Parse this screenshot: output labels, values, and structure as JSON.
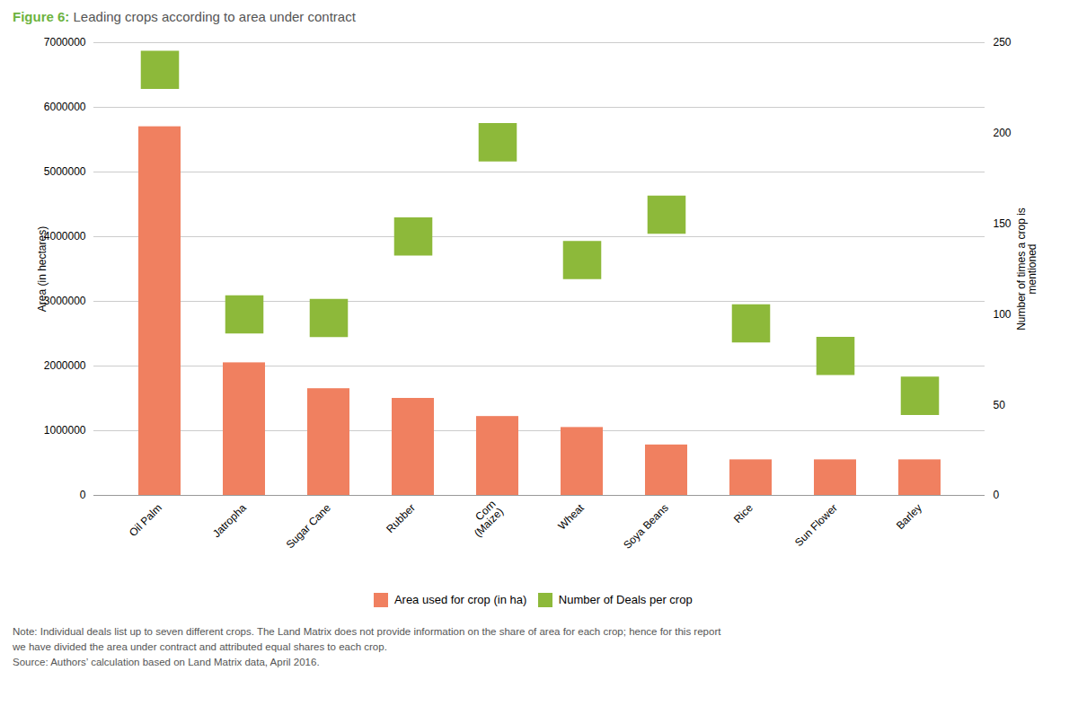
{
  "chart_data": {
    "type": "bar",
    "title": "Figure 6: Leading crops according to area under contract",
    "categories": [
      "Oil Palm",
      "Jatropha",
      "Sugar Cane",
      "Rubber",
      "Corn\n(Maize)",
      "Wheat",
      "Soya Beans",
      "Rice",
      "Sun Flower",
      "Barley"
    ],
    "series": [
      {
        "name": "Area used for crop (in ha)",
        "color": "#F08060",
        "type": "bar",
        "values": [
          5700000,
          2050000,
          1650000,
          1500000,
          1220000,
          1050000,
          780000,
          550000,
          550000,
          550000
        ]
      },
      {
        "name": "Number of Deals per crop",
        "color": "#8DB93A",
        "type": "scatter",
        "marker": "square",
        "axis": "y2",
        "values": [
          235,
          100,
          98,
          143,
          195,
          130,
          155,
          95,
          77,
          55
        ]
      }
    ],
    "ylabel": "Area (in hectares)",
    "y2label": "Number of times a crop is\nmentioned",
    "ylim": [
      0,
      7000000
    ],
    "yticks": [
      0,
      1000000,
      2000000,
      3000000,
      4000000,
      5000000,
      6000000,
      7000000
    ],
    "y2lim": [
      0,
      250
    ],
    "y2ticks": [
      0,
      50,
      100,
      150,
      200,
      250
    ],
    "grid": true,
    "legend": "bottom",
    "caption": "Note: Individual deals list up to seven different crops. The Land Matrix does not provide information on the share of area for each crop; hence for this report\nwe have divided the area under contract and attributed equal shares to each crop.\nSource: Authors’ calculation based on Land Matrix data, April 2016."
  }
}
